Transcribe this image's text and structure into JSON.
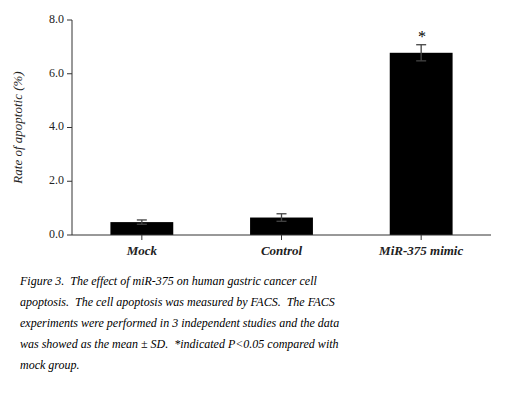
{
  "chart_data": {
    "type": "bar",
    "categories": [
      "Mock",
      "Control",
      "MiR-375 mimic"
    ],
    "values": [
      0.48,
      0.65,
      6.78
    ],
    "errors": [
      0.08,
      0.14,
      0.3
    ],
    "color": "#000000",
    "ylim": [
      0,
      8.0
    ],
    "yticks": [
      {
        "value": 0.0,
        "label": "0.0"
      },
      {
        "value": 2.0,
        "label": "2.0"
      },
      {
        "value": 4.0,
        "label": "4.0"
      },
      {
        "value": 6.0,
        "label": "6.0"
      },
      {
        "value": 8.0,
        "label": "8.0"
      }
    ],
    "ylabel": "Rate of apoptotic (%)",
    "grid": false,
    "annotations": [
      {
        "text": "*",
        "category": "MiR-375 mimic"
      }
    ],
    "caption": [
      "Figure 3.  The effect of miR-375 on human gastric cancer cell",
      "apoptosis.  The cell apoptosis was measured by FACS.  The FACS",
      "experiments were performed in 3 independent studies and the data",
      "was showed as the mean ± SD.  *indicated P<0.05 compared with",
      "mock group."
    ]
  }
}
